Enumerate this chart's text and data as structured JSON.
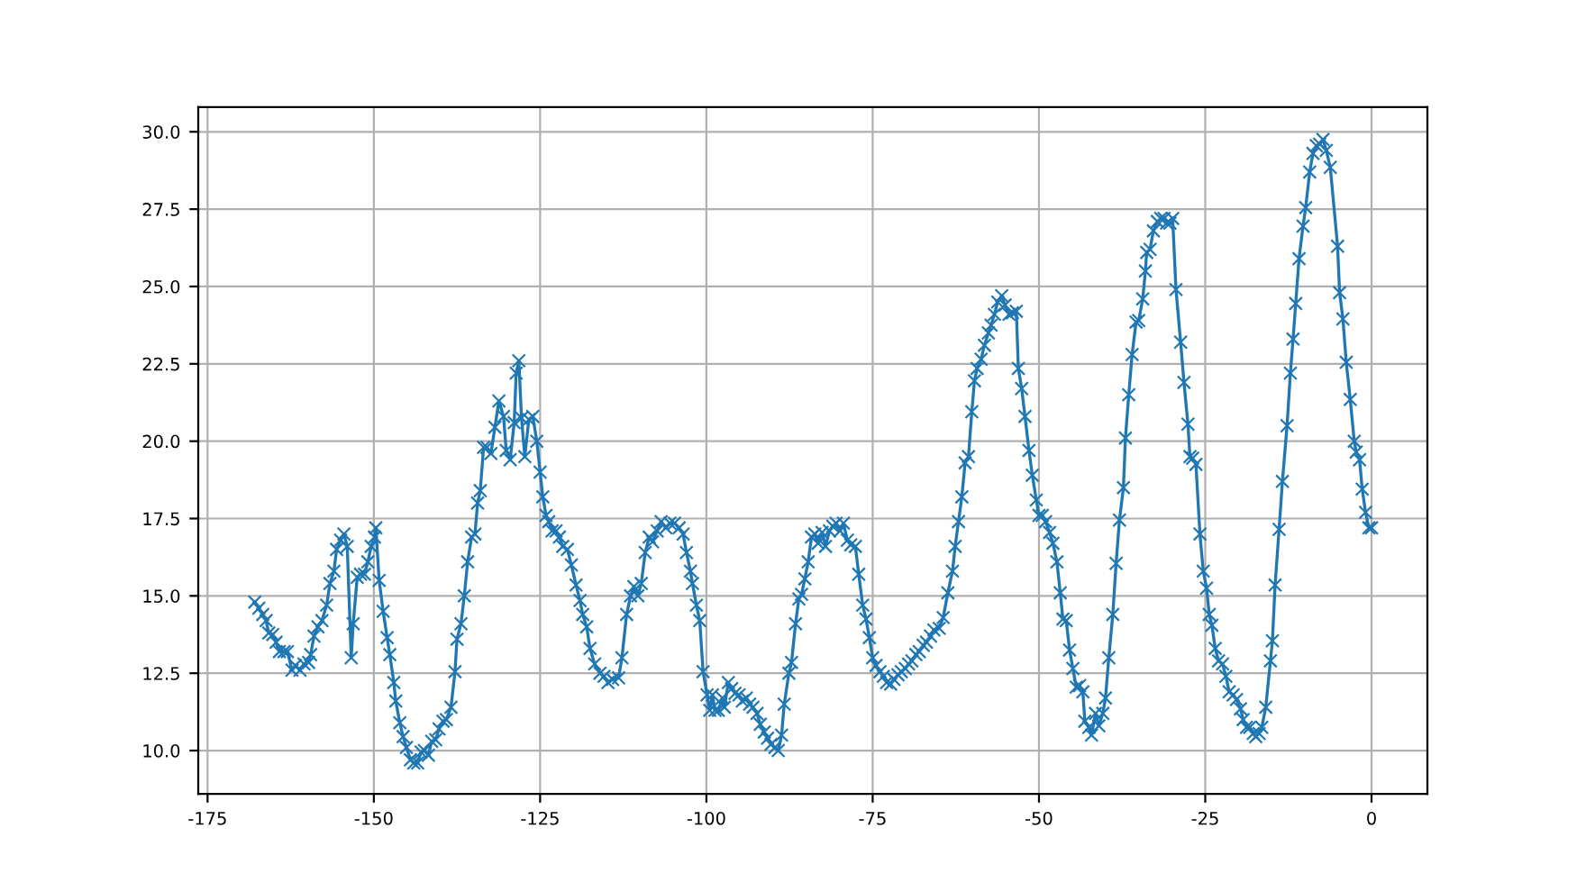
{
  "chart_data": {
    "type": "line",
    "marker": "cross",
    "line_style": "solid",
    "grid": true,
    "xlim": [
      -176.4,
      8.4
    ],
    "ylim": [
      8.6,
      30.8
    ],
    "xticks": [
      -175,
      -150,
      -125,
      -100,
      -75,
      -50,
      -25,
      0
    ],
    "yticks": [
      {
        "value": 10,
        "label": "10.0"
      },
      {
        "value": 12.5,
        "label": "12.5"
      },
      {
        "value": 15,
        "label": "15.0"
      },
      {
        "value": 17.5,
        "label": "17.5"
      },
      {
        "value": 20,
        "label": "20.0"
      },
      {
        "value": 22.5,
        "label": "22.5"
      },
      {
        "value": 25,
        "label": "25.0"
      },
      {
        "value": 27.5,
        "label": "27.5"
      },
      {
        "value": 30,
        "label": "30.0"
      }
    ],
    "series": [
      {
        "color": "#1f77b4",
        "x": [
          -167.9,
          -167.3,
          -166.7,
          -166.2,
          -165.8,
          -165.2,
          -164.7,
          -164.2,
          -163.5,
          -163.0,
          -162.3,
          -161.8,
          -161.1,
          -160.5,
          -159.8,
          -159.5,
          -159.0,
          -158.4,
          -157.8,
          -157.1,
          -156.6,
          -156.0,
          -155.6,
          -155.0,
          -154.5,
          -154.0,
          -153.4,
          -153.1,
          -152.5,
          -152.0,
          -151.4,
          -150.9,
          -150.4,
          -149.9,
          -149.7,
          -149.2,
          -148.6,
          -148.0,
          -147.6,
          -147.0,
          -146.7,
          -146.1,
          -145.6,
          -145.1,
          -144.5,
          -144.0,
          -143.4,
          -142.9,
          -142.4,
          -141.8,
          -141.3,
          -140.7,
          -140.2,
          -139.6,
          -139.1,
          -138.4,
          -137.8,
          -137.5,
          -136.9,
          -136.4,
          -135.9,
          -135.3,
          -134.8,
          -134.4,
          -134.0,
          -133.5,
          -133.0,
          -132.4,
          -131.8,
          -131.2,
          -130.5,
          -130.1,
          -129.5,
          -128.9,
          -128.6,
          -128.2,
          -127.8,
          -127.3,
          -126.7,
          -126.1,
          -125.5,
          -125.0,
          -124.6,
          -124.1,
          -123.7,
          -123.2,
          -122.6,
          -122.1,
          -121.6,
          -120.9,
          -120.3,
          -119.6,
          -119.0,
          -118.6,
          -118.0,
          -117.5,
          -116.8,
          -116.0,
          -115.4,
          -114.8,
          -114.1,
          -113.2,
          -112.7,
          -112.0,
          -111.4,
          -110.9,
          -110.3,
          -109.8,
          -109.2,
          -108.6,
          -108.1,
          -107.4,
          -106.8,
          -106.1,
          -105.5,
          -104.8,
          -104.1,
          -103.5,
          -103.0,
          -102.4,
          -102.1,
          -101.5,
          -101.0,
          -100.5,
          -99.9,
          -99.5,
          -99.1,
          -98.7,
          -98.2,
          -97.6,
          -97.3,
          -96.7,
          -96.2,
          -95.7,
          -95.1,
          -94.6,
          -94.0,
          -93.5,
          -93.0,
          -92.4,
          -91.9,
          -91.3,
          -90.8,
          -90.3,
          -89.7,
          -89.2,
          -88.7,
          -88.3,
          -87.6,
          -87.2,
          -86.6,
          -86.1,
          -85.7,
          -85.2,
          -84.7,
          -84.2,
          -83.7,
          -83.2,
          -82.6,
          -82.1,
          -81.5,
          -81.0,
          -80.5,
          -79.9,
          -79.4,
          -78.8,
          -78.3,
          -77.6,
          -77.1,
          -76.5,
          -76.0,
          -75.5,
          -75.0,
          -74.5,
          -73.9,
          -73.4,
          -72.9,
          -72.3,
          -71.8,
          -71.2,
          -70.7,
          -70.1,
          -69.6,
          -69.1,
          -68.5,
          -68.0,
          -67.4,
          -66.9,
          -66.3,
          -65.8,
          -65.0,
          -64.4,
          -63.7,
          -63.0,
          -62.6,
          -62.1,
          -61.6,
          -61.1,
          -60.6,
          -60.1,
          -59.7,
          -59.3,
          -58.7,
          -58.2,
          -57.6,
          -57.2,
          -56.7,
          -56.2,
          -55.6,
          -55.1,
          -54.5,
          -54.0,
          -53.4,
          -53.1,
          -52.6,
          -52.1,
          -51.5,
          -51.0,
          -50.4,
          -50.0,
          -49.5,
          -49.0,
          -48.4,
          -47.9,
          -47.3,
          -46.8,
          -46.4,
          -45.9,
          -45.4,
          -44.9,
          -44.4,
          -43.9,
          -43.4,
          -43.1,
          -42.5,
          -42.1,
          -41.5,
          -41.0,
          -40.4,
          -40.0,
          -39.5,
          -38.9,
          -38.4,
          -37.9,
          -37.3,
          -37.0,
          -36.5,
          -36.0,
          -35.4,
          -35.0,
          -34.4,
          -34.0,
          -33.8,
          -33.3,
          -32.8,
          -32.2,
          -31.7,
          -31.2,
          -30.8,
          -30.3,
          -29.9,
          -29.4,
          -28.7,
          -28.2,
          -27.6,
          -27.3,
          -26.9,
          -26.4,
          -25.8,
          -25.3,
          -24.8,
          -24.4,
          -24.0,
          -23.5,
          -23.0,
          -22.4,
          -21.9,
          -21.4,
          -20.8,
          -20.3,
          -19.7,
          -19.3,
          -18.8,
          -18.3,
          -17.8,
          -17.4,
          -16.9,
          -16.5,
          -15.9,
          -15.2,
          -14.9,
          -14.5,
          -13.9,
          -13.4,
          -12.7,
          -12.2,
          -11.8,
          -11.4,
          -10.9,
          -10.3,
          -9.9,
          -9.3,
          -8.8,
          -8.3,
          -7.8,
          -7.3,
          -6.8,
          -6.2,
          -5.1,
          -4.8,
          -4.3,
          -3.8,
          -3.2,
          -2.6,
          -2.3,
          -1.8,
          -1.4,
          -0.9,
          -0.4,
          0.0
        ],
        "values": [
          14.8,
          14.6,
          14.4,
          14.2,
          13.8,
          13.75,
          13.5,
          13.2,
          13.2,
          13.2,
          12.6,
          12.75,
          12.6,
          12.8,
          12.85,
          13.1,
          13.7,
          14.0,
          14.2,
          14.7,
          15.4,
          15.8,
          16.5,
          16.8,
          17.0,
          16.6,
          13.0,
          14.1,
          15.6,
          15.7,
          15.7,
          16.1,
          16.6,
          16.9,
          17.2,
          15.5,
          14.5,
          13.65,
          13.1,
          12.2,
          11.6,
          10.9,
          10.45,
          10.1,
          9.7,
          9.6,
          9.6,
          9.95,
          10.0,
          9.85,
          10.3,
          10.35,
          10.7,
          10.95,
          11.0,
          11.4,
          12.55,
          13.6,
          14.1,
          15.0,
          16.1,
          16.9,
          17.0,
          18.0,
          18.4,
          19.8,
          19.8,
          19.6,
          20.45,
          21.3,
          20.8,
          19.7,
          19.4,
          20.6,
          22.2,
          22.6,
          20.75,
          19.5,
          20.7,
          20.8,
          20.0,
          19.0,
          18.2,
          17.6,
          17.4,
          17.1,
          17.1,
          16.9,
          16.6,
          16.5,
          16.0,
          15.35,
          14.85,
          14.4,
          14.0,
          13.3,
          12.8,
          12.5,
          12.4,
          12.2,
          12.3,
          12.35,
          13.0,
          14.4,
          15.0,
          15.3,
          15.0,
          15.4,
          16.4,
          16.9,
          16.75,
          17.1,
          17.4,
          17.2,
          17.35,
          17.35,
          17.2,
          17.0,
          16.4,
          15.8,
          15.4,
          14.7,
          14.2,
          12.55,
          11.8,
          11.3,
          11.8,
          11.3,
          11.3,
          11.7,
          11.4,
          12.2,
          12.0,
          11.85,
          11.8,
          11.6,
          11.7,
          11.5,
          11.4,
          11.2,
          10.85,
          10.6,
          10.4,
          10.2,
          10.1,
          10.0,
          10.5,
          11.5,
          12.5,
          12.85,
          14.1,
          14.9,
          15.05,
          15.55,
          16.1,
          16.9,
          17.0,
          16.7,
          17.05,
          16.6,
          17.1,
          17.25,
          17.35,
          17.1,
          17.35,
          16.8,
          16.65,
          16.6,
          15.7,
          14.7,
          14.25,
          13.65,
          13.0,
          12.75,
          12.55,
          12.4,
          12.2,
          12.15,
          12.3,
          12.45,
          12.55,
          12.65,
          12.8,
          12.9,
          13.1,
          13.2,
          13.4,
          13.5,
          13.7,
          13.9,
          13.95,
          14.3,
          15.1,
          15.8,
          16.6,
          17.4,
          18.2,
          19.3,
          19.5,
          20.95,
          21.95,
          22.35,
          22.65,
          23.1,
          23.5,
          23.75,
          24.1,
          24.5,
          24.7,
          24.4,
          24.1,
          24.15,
          24.2,
          22.35,
          21.7,
          20.8,
          19.7,
          18.9,
          18.1,
          17.6,
          17.6,
          17.4,
          17.05,
          16.7,
          16.1,
          15.1,
          14.25,
          14.2,
          13.25,
          12.65,
          12.05,
          12.1,
          11.9,
          10.95,
          10.75,
          10.5,
          11.2,
          10.8,
          11.2,
          11.7,
          13.0,
          14.4,
          16.05,
          17.45,
          18.5,
          20.1,
          21.5,
          22.8,
          23.85,
          23.9,
          24.6,
          25.5,
          26.1,
          26.2,
          26.8,
          27.1,
          27.2,
          27.2,
          27.05,
          27.05,
          27.2,
          24.9,
          23.2,
          21.9,
          20.55,
          19.5,
          19.45,
          19.25,
          17.0,
          15.8,
          15.25,
          14.4,
          14.05,
          13.3,
          12.9,
          12.8,
          12.4,
          11.9,
          11.8,
          11.65,
          11.35,
          11.0,
          10.75,
          10.75,
          10.55,
          10.45,
          10.55,
          10.75,
          11.4,
          12.9,
          13.55,
          15.35,
          17.15,
          18.7,
          20.5,
          22.2,
          23.3,
          24.45,
          25.9,
          26.95,
          27.55,
          28.7,
          29.3,
          29.55,
          29.6,
          29.75,
          29.4,
          28.85,
          26.3,
          24.8,
          23.95,
          22.55,
          21.35,
          20.0,
          19.65,
          19.4,
          18.45,
          17.7,
          17.2,
          17.2
        ]
      }
    ]
  }
}
